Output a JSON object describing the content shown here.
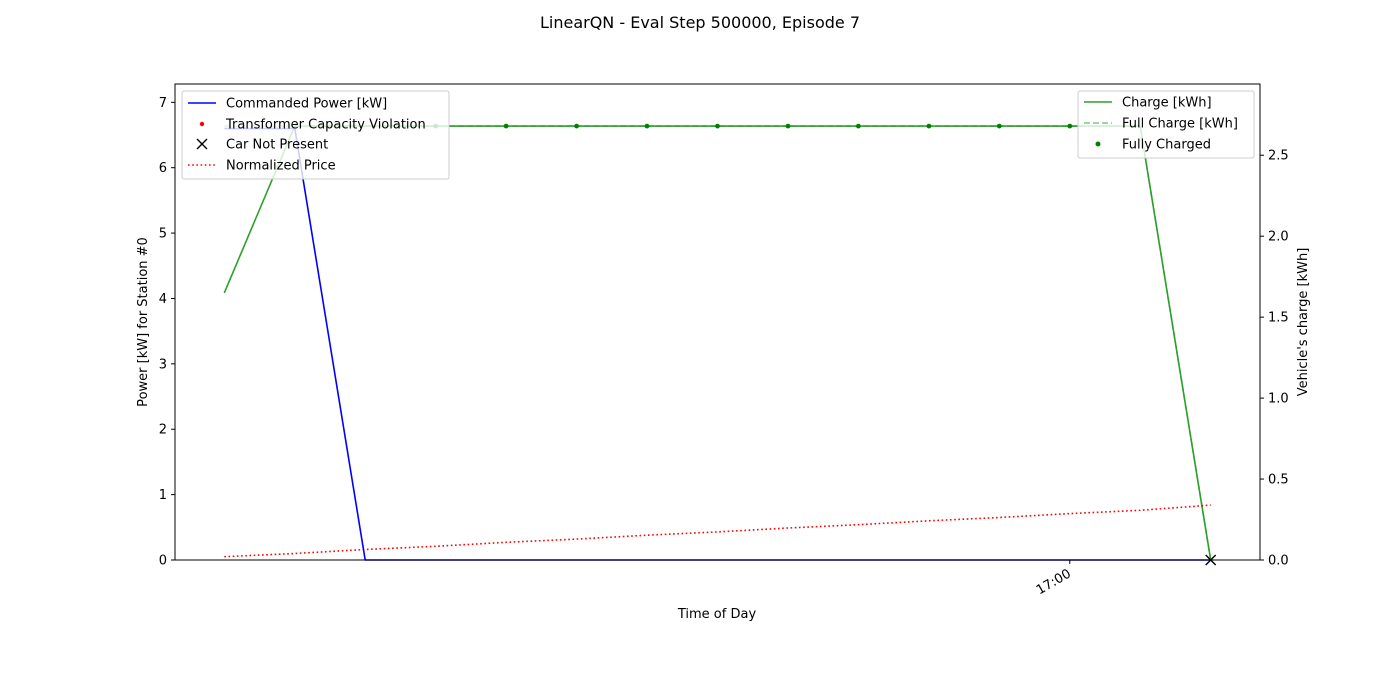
{
  "chart_data": {
    "type": "line",
    "title": "LinearQN - Eval Step 500000, Episode 7",
    "xlabel": "Time of Day",
    "ylabel_left": "Power [kW] for Station #0",
    "ylabel_right": "Vehicle's charge [kWh]",
    "x_tick_labels": [
      "17:00"
    ],
    "x_tick_index": 12,
    "x_count": 15,
    "xlim_index": [
      -0.7,
      14.7
    ],
    "ylim_left": [
      0,
      7.28
    ],
    "yticks_left": [
      0,
      1,
      2,
      3,
      4,
      5,
      6,
      7
    ],
    "ylim_right": [
      0,
      2.94
    ],
    "yticks_right": [
      0.0,
      0.5,
      1.0,
      1.5,
      2.0,
      2.5
    ],
    "grid": false,
    "legend_left": {
      "placement": "upper left",
      "entries": [
        "Commanded Power [kW]",
        "Transformer Capacity Violation",
        "Car Not Present",
        "Normalized Price"
      ]
    },
    "legend_right": {
      "placement": "upper right",
      "entries": [
        "Charge [kWh]",
        "Full Charge [kWh]",
        "Fully Charged"
      ]
    },
    "series": [
      {
        "name": "Commanded Power [kW]",
        "axis": "left",
        "color": "#0000ff",
        "style": "solid",
        "values": [
          6.6,
          6.6,
          0,
          0,
          0,
          0,
          0,
          0,
          0,
          0,
          0,
          0,
          0,
          0,
          0
        ]
      },
      {
        "name": "Normalized Price",
        "axis": "left",
        "color": "#ff0000",
        "style": "dotted",
        "values": [
          0.05,
          0.1,
          0.16,
          0.21,
          0.27,
          0.32,
          0.38,
          0.43,
          0.49,
          0.54,
          0.6,
          0.65,
          0.71,
          0.76,
          0.84
        ]
      },
      {
        "name": "Car Not Present",
        "axis": "left",
        "color": "#000000",
        "style": "x-marker",
        "points": [
          [
            14,
            0
          ]
        ]
      },
      {
        "name": "Charge [kWh]",
        "axis": "right",
        "color": "#2ca02c",
        "style": "solid",
        "values": [
          1.65,
          2.68,
          2.68,
          2.68,
          2.68,
          2.68,
          2.68,
          2.68,
          2.68,
          2.68,
          2.68,
          2.68,
          2.68,
          2.68,
          0
        ]
      },
      {
        "name": "Full Charge [kWh]",
        "axis": "right",
        "color": "#2ca02c",
        "style": "dashed",
        "values": [
          2.68,
          2.68,
          2.68,
          2.68,
          2.68,
          2.68,
          2.68,
          2.68,
          2.68,
          2.68,
          2.68,
          2.68,
          2.68,
          2.68,
          0
        ]
      },
      {
        "name": "Fully Charged",
        "axis": "right",
        "color": "#008000",
        "style": "dot-marker",
        "points": [
          [
            3,
            2.68
          ],
          [
            4,
            2.68
          ],
          [
            5,
            2.68
          ],
          [
            6,
            2.68
          ],
          [
            7,
            2.68
          ],
          [
            8,
            2.68
          ],
          [
            9,
            2.68
          ],
          [
            10,
            2.68
          ],
          [
            11,
            2.68
          ],
          [
            12,
            2.68
          ]
        ]
      }
    ]
  }
}
